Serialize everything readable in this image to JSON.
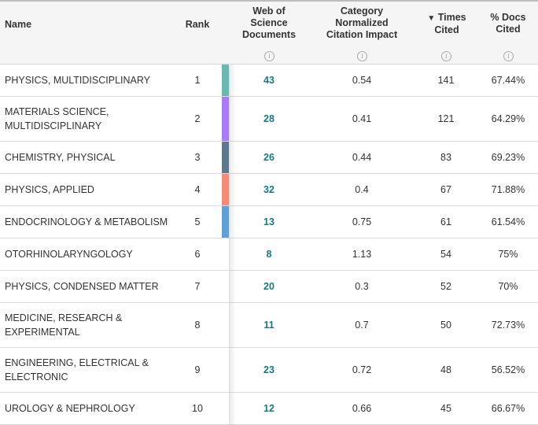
{
  "headers": {
    "name": "Name",
    "rank": "Rank",
    "wos": "Web of Science Documents",
    "cnci": "Category Normalized Citation Impact",
    "times_cited": "Times Cited",
    "sort_indicator": "▼",
    "pct_docs_cited": "% Docs Cited",
    "info_icon": "i"
  },
  "rows": [
    {
      "name": "PHYSICS, MULTIDISCIPLINARY",
      "rank": "1",
      "wos": "43",
      "cnci": "0.54",
      "times_cited": "141",
      "pct": "67.44%",
      "color": "#6bb8b3"
    },
    {
      "name": "MATERIALS SCIENCE, MULTIDISCIPLINARY",
      "rank": "2",
      "wos": "28",
      "cnci": "0.41",
      "times_cited": "121",
      "pct": "64.29%",
      "color": "#a87bf7"
    },
    {
      "name": "CHEMISTRY, PHYSICAL",
      "rank": "3",
      "wos": "26",
      "cnci": "0.44",
      "times_cited": "83",
      "pct": "69.23%",
      "color": "#61778c"
    },
    {
      "name": "PHYSICS, APPLIED",
      "rank": "4",
      "wos": "32",
      "cnci": "0.4",
      "times_cited": "67",
      "pct": "71.88%",
      "color": "#f28b78"
    },
    {
      "name": "ENDOCRINOLOGY & METABOLISM",
      "rank": "5",
      "wos": "13",
      "cnci": "0.75",
      "times_cited": "61",
      "pct": "61.54%",
      "color": "#629fd6"
    },
    {
      "name": "OTORHINOLARYNGOLOGY",
      "rank": "6",
      "wos": "8",
      "cnci": "1.13",
      "times_cited": "54",
      "pct": "75%",
      "color": ""
    },
    {
      "name": "PHYSICS, CONDENSED MATTER",
      "rank": "7",
      "wos": "20",
      "cnci": "0.3",
      "times_cited": "52",
      "pct": "70%",
      "color": ""
    },
    {
      "name": "MEDICINE, RESEARCH & EXPERIMENTAL",
      "rank": "8",
      "wos": "11",
      "cnci": "0.7",
      "times_cited": "50",
      "pct": "72.73%",
      "color": ""
    },
    {
      "name": "ENGINEERING, ELECTRICAL & ELECTRONIC",
      "rank": "9",
      "wos": "23",
      "cnci": "0.72",
      "times_cited": "48",
      "pct": "56.52%",
      "color": ""
    },
    {
      "name": "UROLOGY & NEPHROLOGY",
      "rank": "10",
      "wos": "12",
      "cnci": "0.66",
      "times_cited": "45",
      "pct": "66.67%",
      "color": ""
    }
  ]
}
